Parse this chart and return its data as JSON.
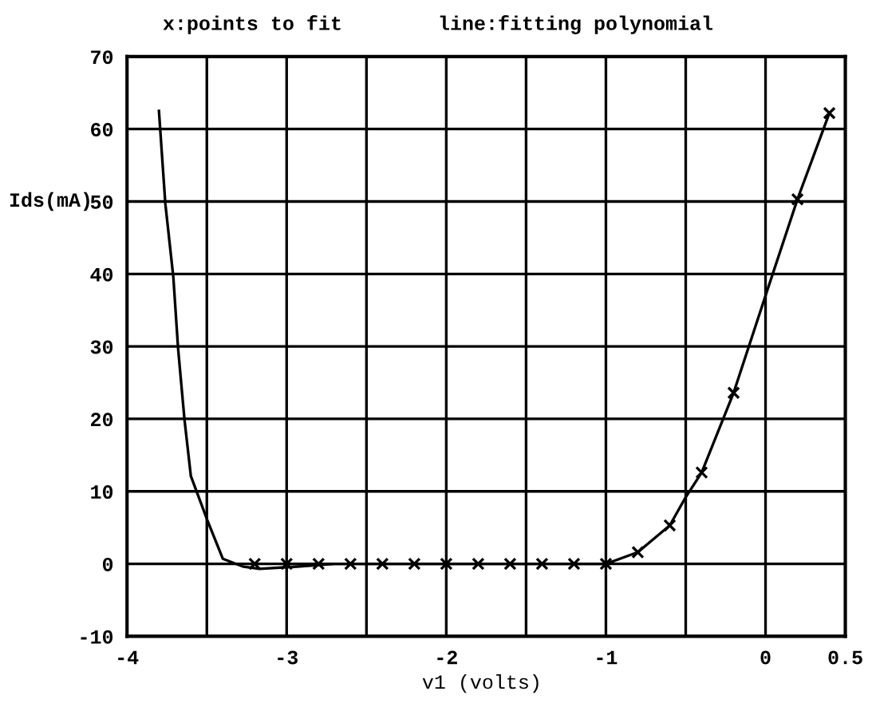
{
  "chart_data": {
    "type": "line",
    "title": "x:points to fit        line:fitting polynomial",
    "xlabel": "v1 (volts)",
    "ylabel": "Ids(mA)",
    "xlim": [
      -4,
      0.5
    ],
    "ylim": [
      -10,
      70
    ],
    "xticks": [
      -4,
      {
        "value": -3.5,
        "label": null
      },
      -3,
      {
        "value": -2.5,
        "label": null
      },
      -2,
      {
        "value": -1.5,
        "label": null
      },
      -1,
      {
        "value": -0.5,
        "label": null
      },
      0,
      0.5
    ],
    "yticks": [
      -10,
      0,
      10,
      20,
      30,
      40,
      50,
      60,
      70
    ],
    "grid": true,
    "series": [
      {
        "color": "#000000",
        "marker": "none",
        "line_style": "solid",
        "x": [
          -3.8,
          -3.76,
          -3.71,
          -3.68,
          -3.64,
          -3.6,
          -3.5,
          -3.4,
          -3.27,
          -3.17,
          -2.95,
          -2.7,
          -2.2,
          -1.6,
          -1.0,
          -0.8,
          -0.6,
          -0.5,
          -0.4,
          -0.2,
          0,
          0.2,
          0.4
        ],
        "values": [
          62.5,
          49.7,
          39.6,
          29.7,
          19.9,
          12.1,
          6.2,
          0.7,
          -0.4,
          -0.7,
          -0.4,
          0,
          0,
          0,
          0,
          1.6,
          5.3,
          9.2,
          12.6,
          23.6,
          37,
          50.3,
          62.2
        ]
      },
      {
        "type": "scatter",
        "color": "#000000",
        "marker": "cross",
        "x": [
          -3.2,
          -3.0,
          -2.8,
          -2.6,
          -2.4,
          -2.2,
          -2.0,
          -1.8,
          -1.6,
          -1.4,
          -1.2,
          -1.0,
          -0.8,
          -0.6,
          -0.4,
          -0.2,
          0.2,
          0.4
        ],
        "values": [
          0,
          0,
          0,
          0,
          0,
          0,
          0,
          0,
          0,
          0,
          0,
          0,
          1.6,
          5.3,
          12.6,
          23.6,
          50.3,
          62.2
        ]
      }
    ]
  }
}
